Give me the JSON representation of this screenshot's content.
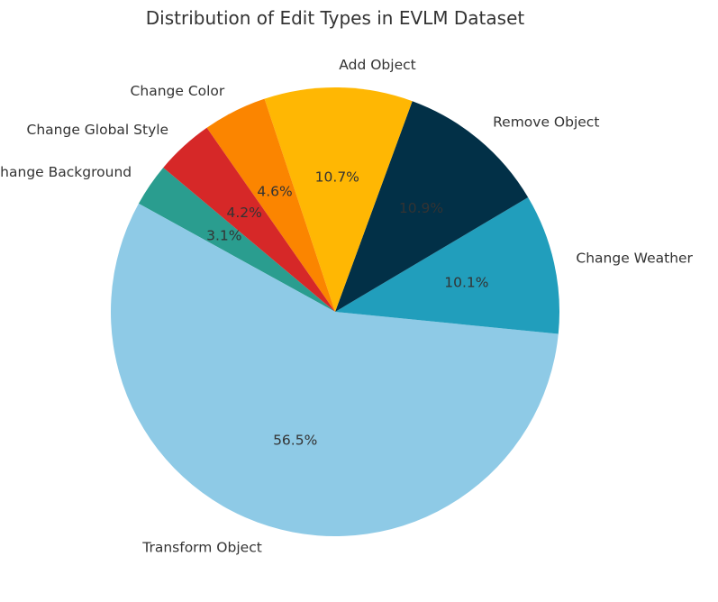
{
  "chart_data": {
    "type": "pie",
    "title": "Distribution of Edit Types in EVLM Dataset",
    "start_angle_deg": 140,
    "direction": "counterclockwise",
    "slices": [
      {
        "label": "Change Background",
        "value": 3.1,
        "pct_label": "3.1%",
        "color": "#2a9d8f"
      },
      {
        "label": "Transform Object",
        "value": 56.5,
        "pct_label": "56.5%",
        "color": "#8ecae6"
      },
      {
        "label": "Change Weather",
        "value": 10.1,
        "pct_label": "10.1%",
        "color": "#219ebc"
      },
      {
        "label": "Remove Object",
        "value": 10.9,
        "pct_label": "10.9%",
        "color": "#023047"
      },
      {
        "label": "Add Object",
        "value": 10.7,
        "pct_label": "10.7%",
        "color": "#ffb703"
      },
      {
        "label": "Change Color",
        "value": 4.6,
        "pct_label": "4.6%",
        "color": "#fb8500"
      },
      {
        "label": "Change Global Style",
        "value": 4.2,
        "pct_label": "4.2%",
        "color": "#d62828"
      }
    ]
  }
}
